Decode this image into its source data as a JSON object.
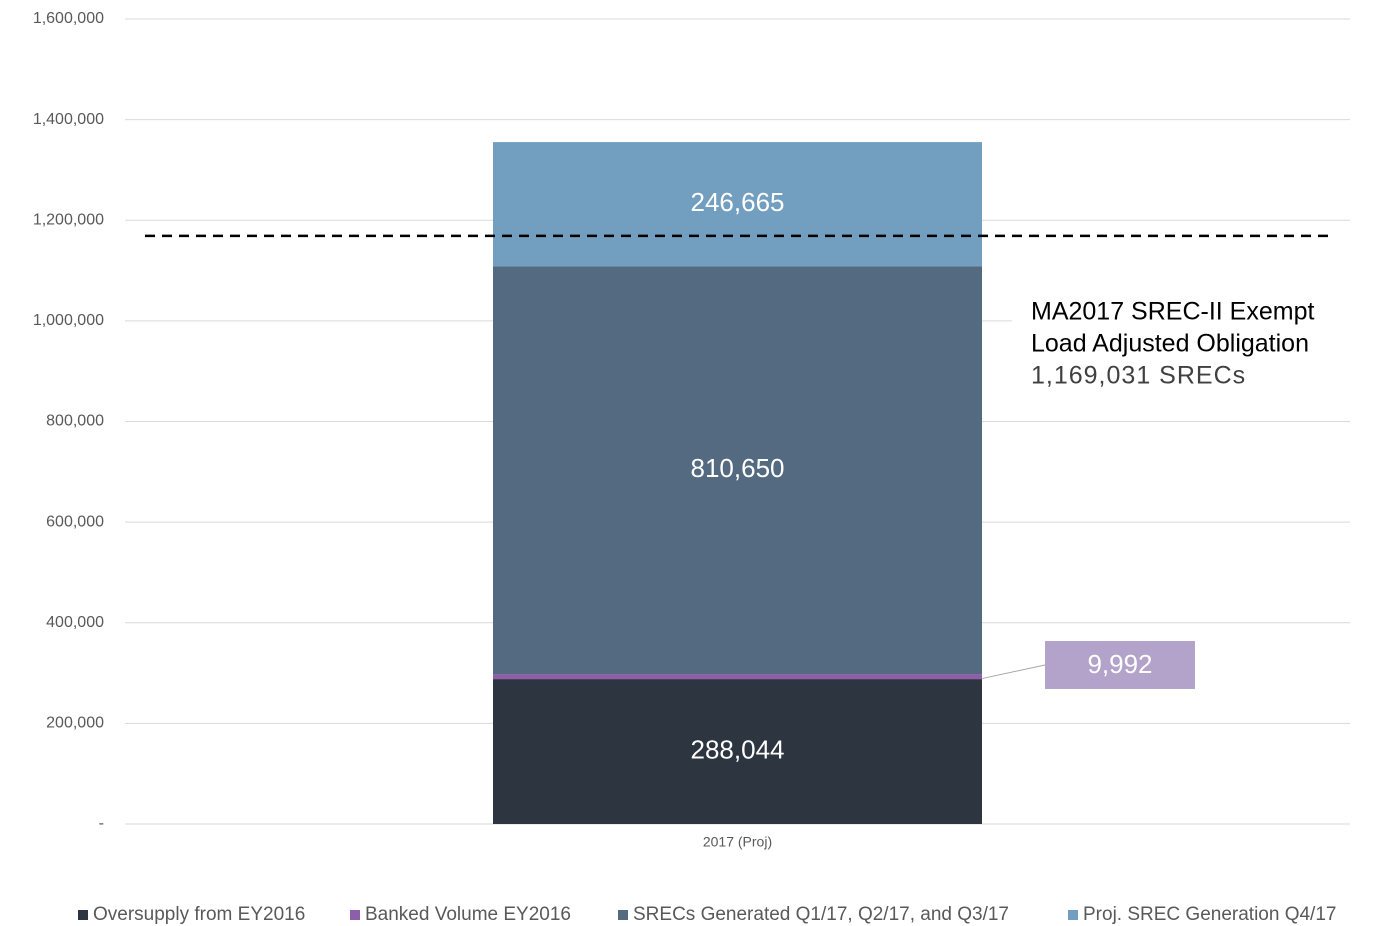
{
  "chart_data": {
    "type": "stacked_bar",
    "categories": [
      "2017 (Proj)"
    ],
    "series": [
      {
        "name": "Oversupply from EY2016",
        "color": "#2d3541",
        "values": [
          288044
        ],
        "value_labels": [
          "288,044"
        ]
      },
      {
        "name": "Banked Volume EY2016",
        "color": "#8e5fa8",
        "values": [
          9992
        ],
        "value_labels": [
          "9,992"
        ]
      },
      {
        "name": "SRECs Generated Q1/17, Q2/17, and Q3/17",
        "color": "#546a80",
        "values": [
          810650
        ],
        "value_labels": [
          "810,650"
        ]
      },
      {
        "name": "Proj. SREC Generation Q4/17",
        "color": "#729fbf",
        "values": [
          246665
        ],
        "value_labels": [
          "246,665"
        ]
      }
    ],
    "ylim": [
      0,
      1600000
    ],
    "yticks": [
      {
        "value": 0,
        "label": "-"
      },
      {
        "value": 200000,
        "label": "200,000"
      },
      {
        "value": 400000,
        "label": "400,000"
      },
      {
        "value": 600000,
        "label": "600,000"
      },
      {
        "value": 800000,
        "label": "800,000"
      },
      {
        "value": 1000000,
        "label": "1,000,000"
      },
      {
        "value": 1200000,
        "label": "1,200,000"
      },
      {
        "value": 1400000,
        "label": "1,400,000"
      },
      {
        "value": 1600000,
        "label": "1,600,000"
      }
    ],
    "grid": true,
    "legend": "bottom",
    "reference_line": {
      "value": 1169031,
      "label_lines": [
        "MA2017 SREC-II Exempt",
        "Load Adjusted Obligation"
      ],
      "value_label": "1,169,031 SRECs"
    }
  }
}
